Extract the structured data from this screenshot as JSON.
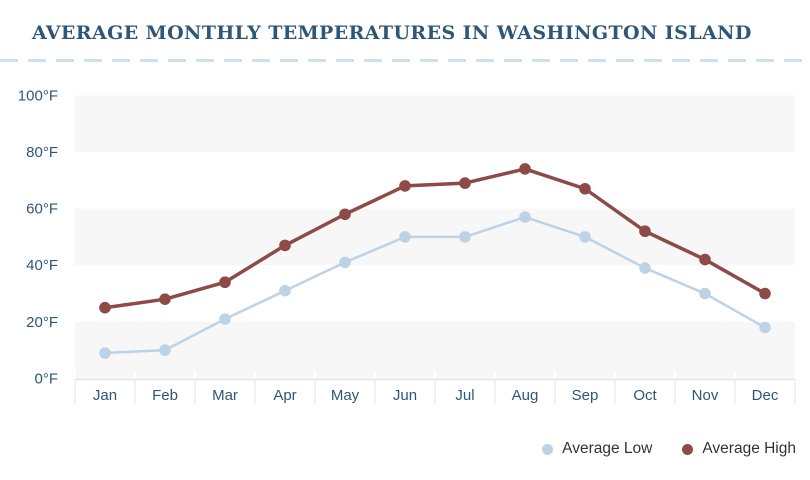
{
  "title": "AVERAGE MONTHLY TEMPERATURES IN WASHINGTON ISLAND",
  "colors": {
    "title_text": "#2e5777",
    "axis_text": "#2e5777",
    "legend_text": "#333333",
    "band_fill": "#f7f7f8",
    "separator": "#e4e4e6",
    "dashed_rule": "#cde1ee",
    "series_low": "#bdd3e5",
    "series_high": "#8e4a46",
    "background": "#ffffff"
  },
  "chart_data": {
    "type": "line",
    "title": "AVERAGE MONTHLY TEMPERATURES IN WASHINGTON ISLAND",
    "categories": [
      "Jan",
      "Feb",
      "Mar",
      "Apr",
      "May",
      "Jun",
      "Jul",
      "Aug",
      "Sep",
      "Oct",
      "Nov",
      "Dec"
    ],
    "series": [
      {
        "name": "Average Low",
        "color": "#bdd3e5",
        "values": [
          9,
          10,
          21,
          31,
          41,
          50,
          50,
          57,
          50,
          39,
          30,
          18
        ]
      },
      {
        "name": "Average High",
        "color": "#8e4a46",
        "values": [
          25,
          28,
          34,
          47,
          58,
          68,
          69,
          74,
          67,
          52,
          42,
          30
        ]
      }
    ],
    "unit": "°F",
    "y_ticks": [
      0,
      20,
      40,
      60,
      80,
      100
    ],
    "y_tick_labels": [
      "0°F",
      "20°F",
      "40°F",
      "60°F",
      "80°F",
      "100°F"
    ],
    "ylim": [
      0,
      100
    ],
    "xlabel": "",
    "ylabel": "",
    "grid": "alternating horizontal bands every 20°F",
    "legend_position": "bottom-right",
    "markers": "filled circles on every point"
  },
  "legend": {
    "items": [
      {
        "label": "Average Low"
      },
      {
        "label": "Average High"
      }
    ]
  }
}
